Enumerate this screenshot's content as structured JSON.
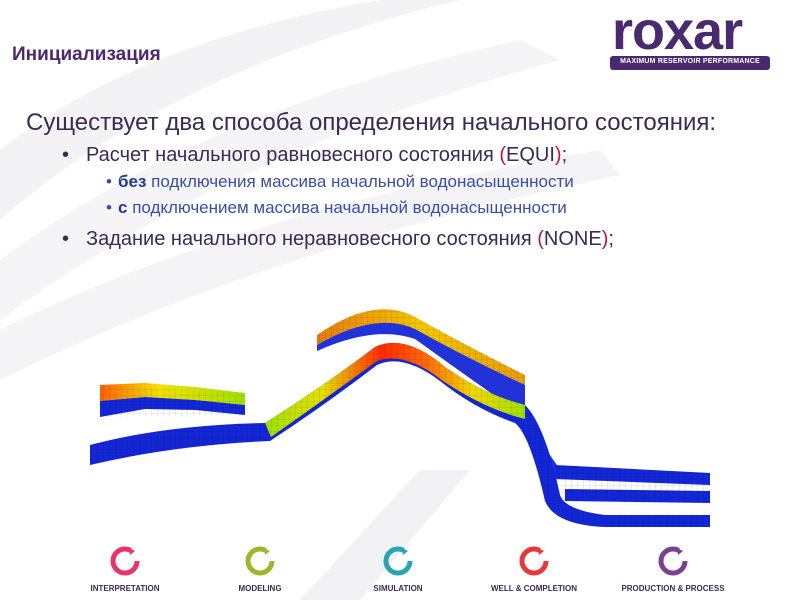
{
  "slide": {
    "title": "Инициализация",
    "logo": {
      "word": "roxar",
      "tagline": "MAXIMUM RESERVOIR PERFORMANCE"
    }
  },
  "content": {
    "lead": "Существует два способа определения начального состояния:",
    "items": [
      {
        "text": "Расчет начального равновесного состояния ",
        "paren_open": "(",
        "keyword": "EQUI",
        "paren_close": ")",
        "tail": ";",
        "subitems": [
          {
            "bold": "без",
            "text": " подключения массива начальной водонасыщенности"
          },
          {
            "bold": "с",
            "text": " подключением массива начальной водонасыщенности"
          }
        ]
      },
      {
        "text": "Задание начального неравновесного состояния ",
        "paren_open": "(",
        "keyword": "NONE",
        "paren_close": ")",
        "tail": ";"
      }
    ]
  },
  "footer": {
    "items": [
      {
        "label": "INTERPRETATION",
        "color": "#e8336d"
      },
      {
        "label": "MODELING",
        "color": "#9bb82c"
      },
      {
        "label": "SIMULATION",
        "color": "#2aa3b8"
      },
      {
        "label": "WELL & COMPLETION",
        "color": "#e8383d"
      },
      {
        "label": "PRODUCTION & PROCESS",
        "color": "#7b3f96"
      }
    ]
  },
  "colors": {
    "brand": "#4a2a6e",
    "accent": "#c0143c",
    "water": "#1427d6"
  }
}
